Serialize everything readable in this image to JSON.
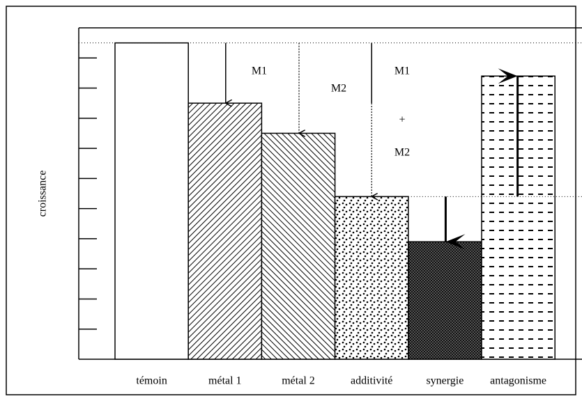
{
  "chart_data": {
    "type": "bar",
    "y_label": "croissance",
    "categories": [
      "témoin",
      "métal 1",
      "métal 2",
      "additivité",
      "synergie",
      "antagonisme"
    ],
    "values": [
      10.5,
      8.5,
      7.5,
      5.4,
      3.9,
      9.4
    ],
    "ylim": [
      0,
      11
    ],
    "yticks": [
      1,
      2,
      3,
      4,
      5,
      6,
      7,
      8,
      9,
      10
    ],
    "annotations": [
      "M1",
      "M2",
      "M1",
      "+",
      "M2"
    ]
  }
}
